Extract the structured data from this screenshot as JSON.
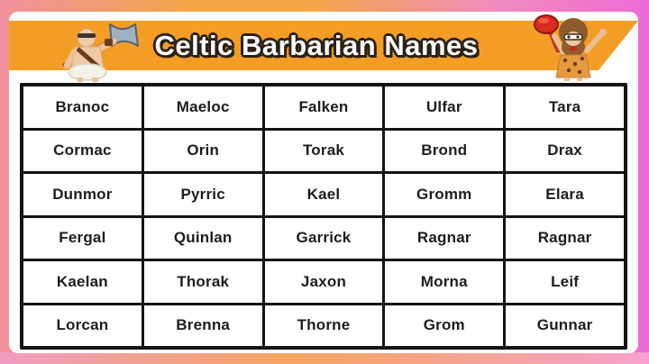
{
  "banner": {
    "title": "Celtic Barbarian Names",
    "background_color": "#F49D26",
    "title_color": "#FFFFFF",
    "title_outline_color": "#2B2217",
    "left_icon": "barbarian-with-axe-character",
    "right_icon": "caveman-with-red-club-character"
  },
  "frame": {
    "card_color": "#FFFFFF",
    "top_gradient": [
      "#F1919E",
      "#F5A446",
      "#EE6AD4"
    ],
    "bottom_gradient": [
      "#F19CC2",
      "#F5A55E",
      "#F9A0CE"
    ]
  },
  "table": {
    "columns": 5,
    "border_color": "#141414",
    "cell_background": "#FFFFFF",
    "text_color": "#1D1D1D",
    "rows": [
      [
        "Branoc",
        "Maeloc",
        "Falken",
        "Ulfar",
        "Tara"
      ],
      [
        "Cormac",
        "Orin",
        "Torak",
        "Brond",
        "Drax"
      ],
      [
        "Dunmor",
        "Pyrric",
        "Kael",
        "Gromm",
        "Elara"
      ],
      [
        "Fergal",
        "Quinlan",
        "Garrick",
        "Ragnar",
        "Ragnar"
      ],
      [
        "Kaelan",
        "Thorak",
        "Jaxon",
        "Morna",
        "Leif"
      ],
      [
        "Lorcan",
        "Brenna",
        "Thorne",
        "Grom",
        "Gunnar"
      ]
    ]
  }
}
